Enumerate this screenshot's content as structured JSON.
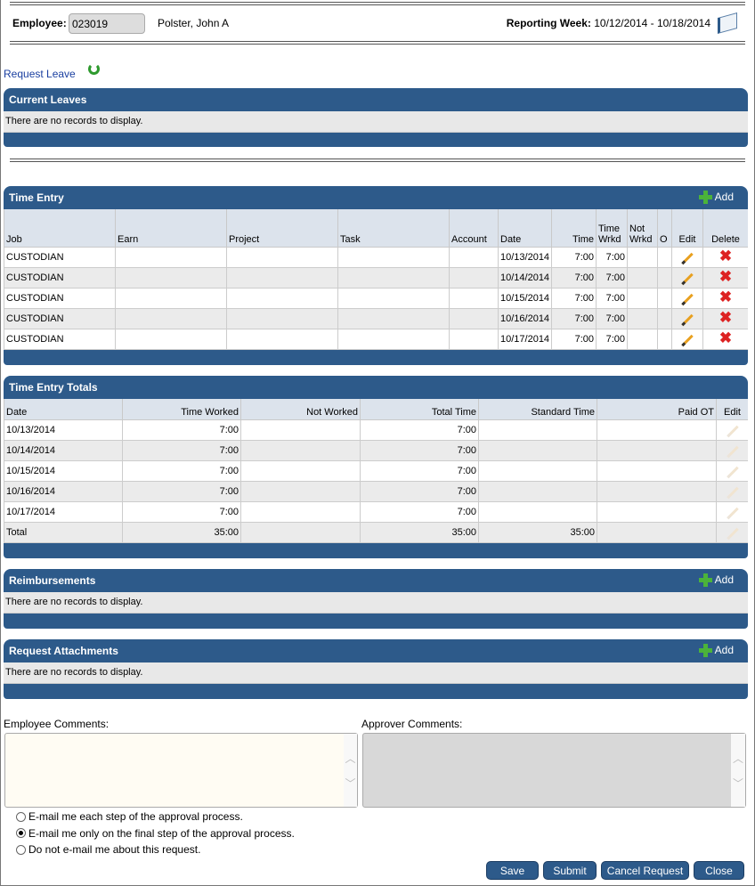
{
  "header": {
    "employee_label": "Employee:",
    "employee_id": "023019",
    "employee_name": "Polster, John A",
    "week_label": "Reporting Week:",
    "week_value": "10/12/2014 - 10/18/2014"
  },
  "request_leave": "Request Leave",
  "current_leaves": {
    "title": "Current Leaves",
    "empty": "There are no records to display."
  },
  "time_entry": {
    "title": "Time Entry",
    "add": "Add",
    "columns": [
      "Job",
      "Earn",
      "Project",
      "Task",
      "Account",
      "Date",
      "Time",
      "Time Wrkd",
      "Not Wrkd",
      "O",
      "Edit",
      "Delete"
    ],
    "rows": [
      {
        "job": "CUSTODIAN",
        "date": "10/13/2014",
        "time": "7:00",
        "wrkd": "7:00"
      },
      {
        "job": "CUSTODIAN",
        "date": "10/14/2014",
        "time": "7:00",
        "wrkd": "7:00"
      },
      {
        "job": "CUSTODIAN",
        "date": "10/15/2014",
        "time": "7:00",
        "wrkd": "7:00"
      },
      {
        "job": "CUSTODIAN",
        "date": "10/16/2014",
        "time": "7:00",
        "wrkd": "7:00"
      },
      {
        "job": "CUSTODIAN",
        "date": "10/17/2014",
        "time": "7:00",
        "wrkd": "7:00"
      }
    ]
  },
  "totals": {
    "title": "Time Entry Totals",
    "columns": [
      "Date",
      "Time Worked",
      "Not Worked",
      "Total Time",
      "Standard Time",
      "Paid OT",
      "Edit"
    ],
    "rows": [
      {
        "date": "10/13/2014",
        "worked": "7:00",
        "total": "7:00",
        "standard": ""
      },
      {
        "date": "10/14/2014",
        "worked": "7:00",
        "total": "7:00",
        "standard": ""
      },
      {
        "date": "10/15/2014",
        "worked": "7:00",
        "total": "7:00",
        "standard": ""
      },
      {
        "date": "10/16/2014",
        "worked": "7:00",
        "total": "7:00",
        "standard": ""
      },
      {
        "date": "10/17/2014",
        "worked": "7:00",
        "total": "7:00",
        "standard": ""
      },
      {
        "date": "Total",
        "worked": "35:00",
        "total": "35:00",
        "standard": "35:00"
      }
    ]
  },
  "reimbursements": {
    "title": "Reimbursements",
    "add": "Add",
    "empty": "There are no records to display."
  },
  "attachments": {
    "title": "Request Attachments",
    "add": "Add",
    "empty": "There are no records to display."
  },
  "comments": {
    "employee_label": "Employee Comments:",
    "approver_label": "Approver Comments:"
  },
  "email_options": [
    "E-mail me each step of the approval process.",
    "E-mail me only on the final step of the approval process.",
    "Do not e-mail me about this request."
  ],
  "email_selected": 1,
  "buttons": {
    "save": "Save",
    "submit": "Submit",
    "cancel": "Cancel Request",
    "close": "Close"
  }
}
